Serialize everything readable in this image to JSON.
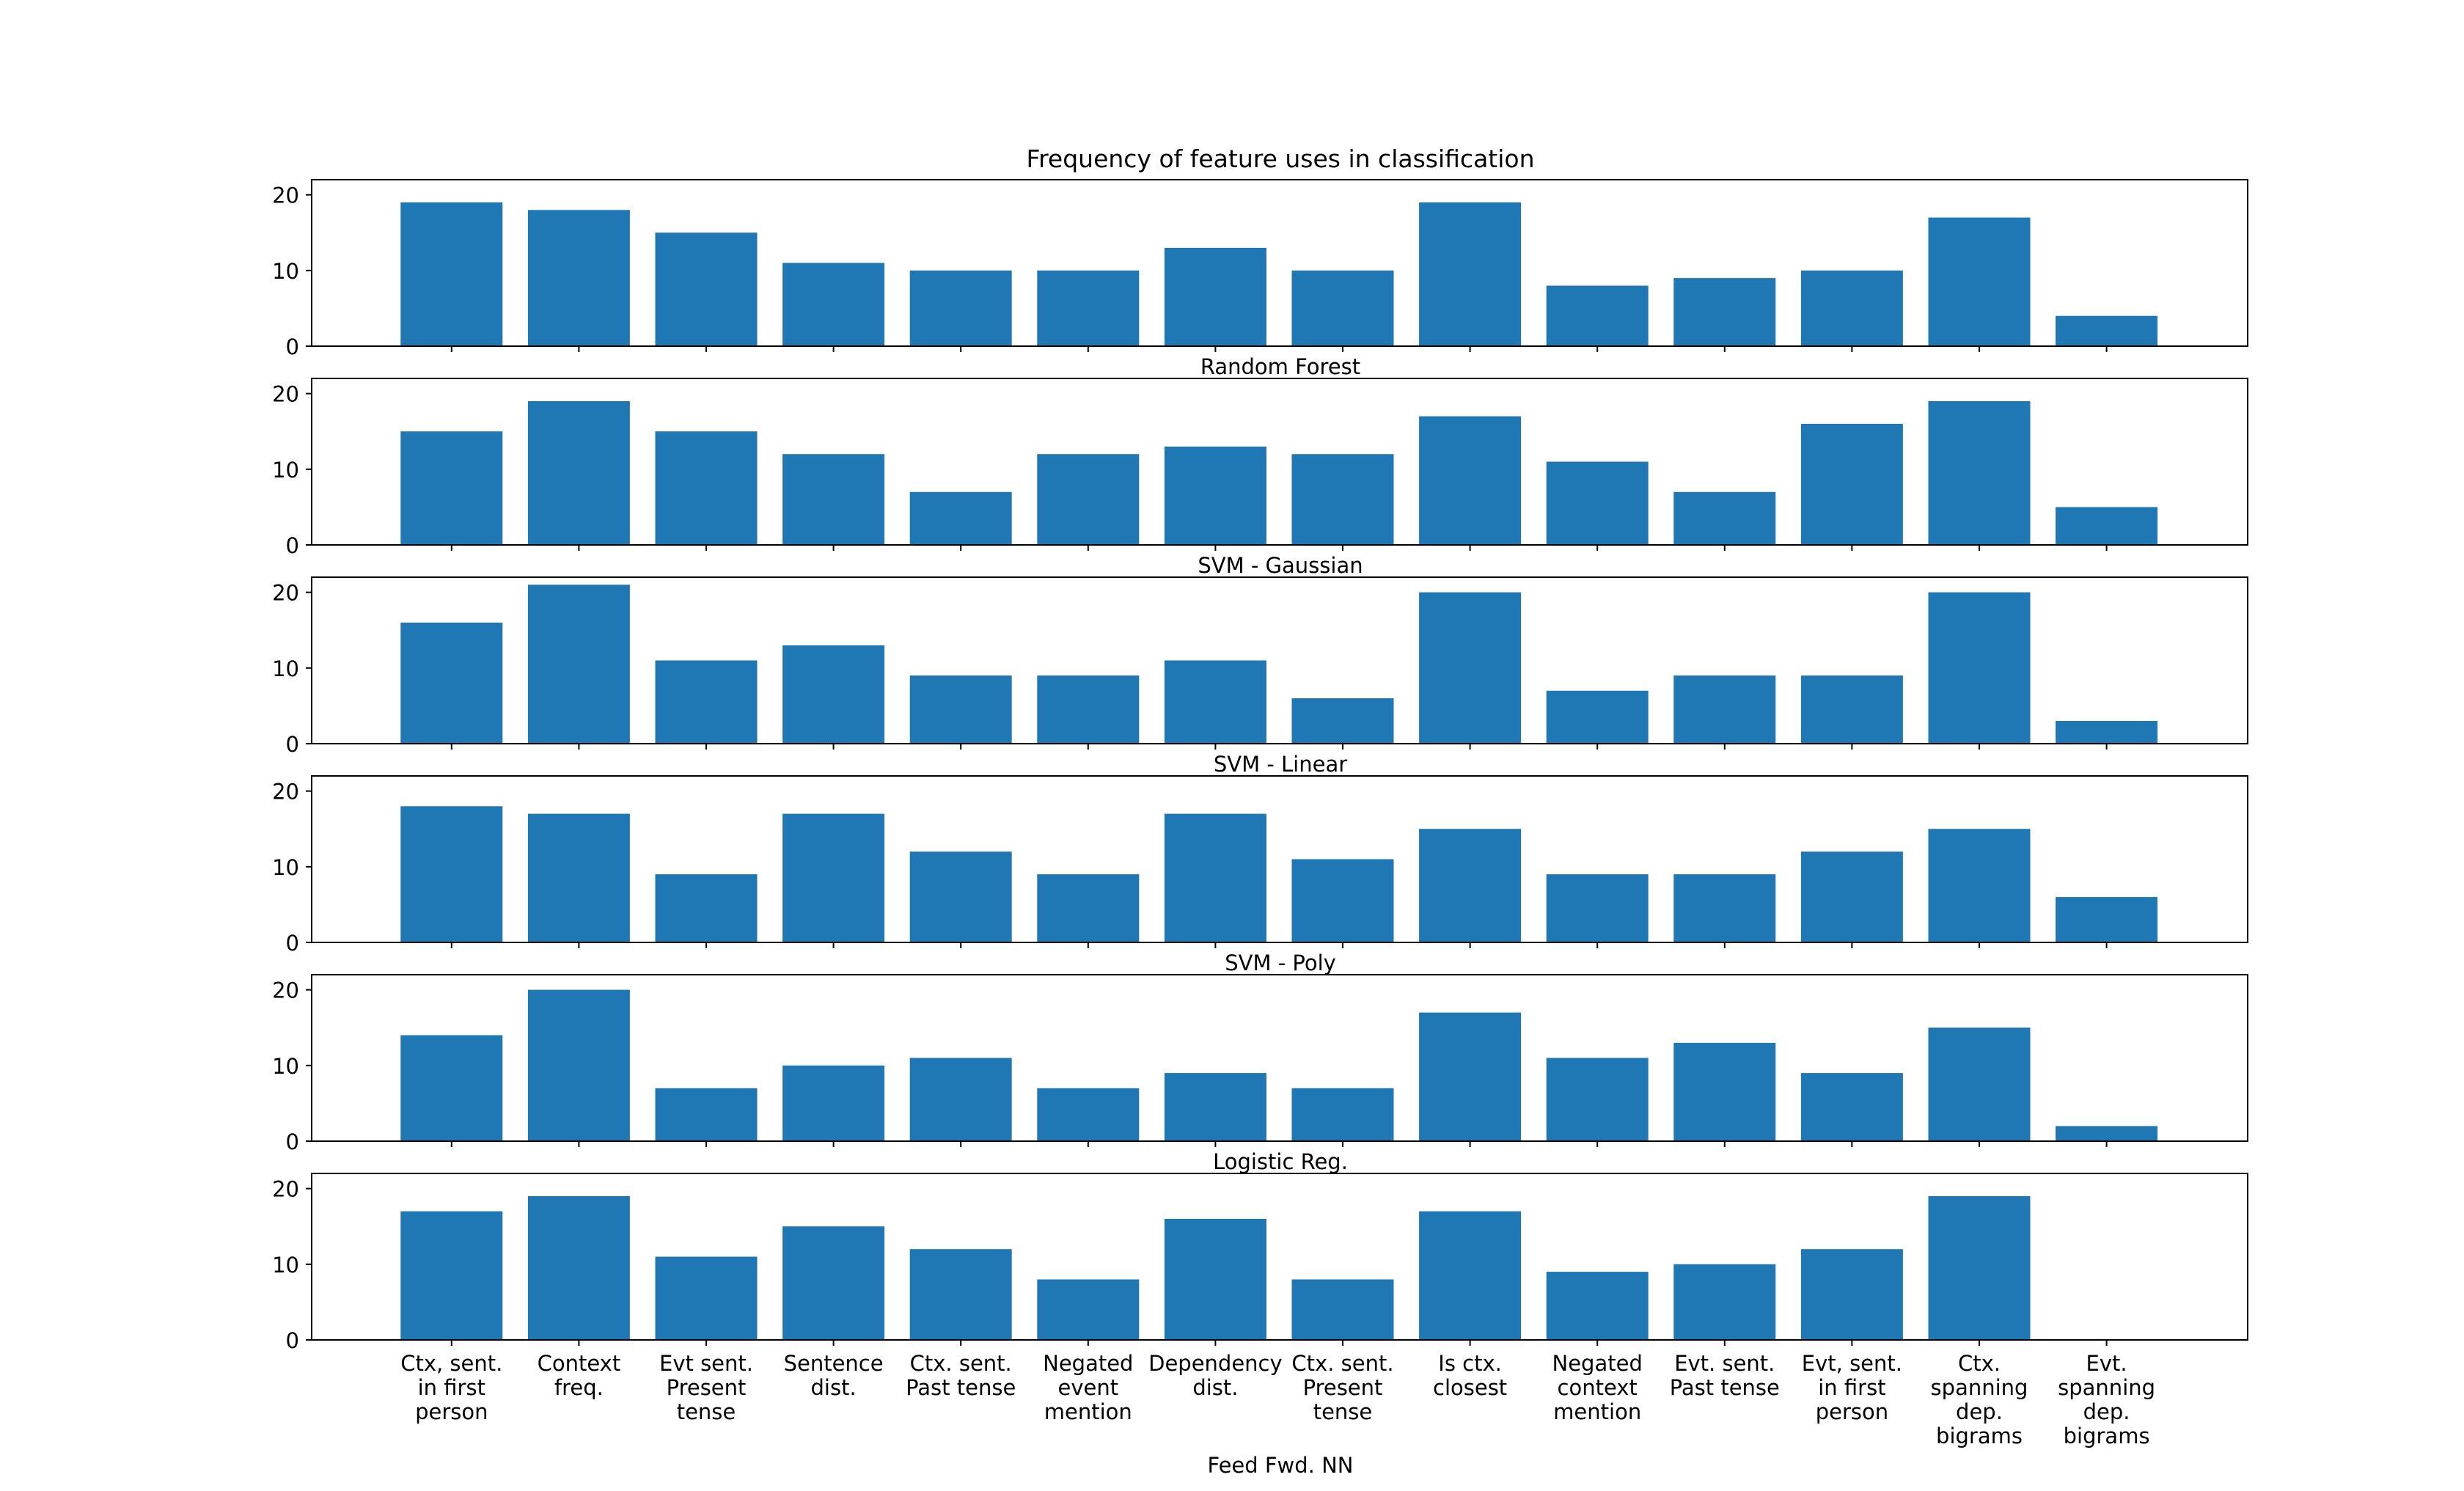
{
  "chart_data": {
    "type": "bar",
    "title": "Frequency of feature uses in classification",
    "categories": [
      "Ctx, sent.\nin first\nperson",
      "Context\nfreq.",
      "Evt sent.\nPresent\ntense",
      "Sentence\ndist.",
      "Ctx. sent.\nPast tense",
      "Negated\nevent\nmention",
      "Dependency\ndist.",
      "Ctx. sent.\nPresent\ntense",
      "Is ctx.\nclosest",
      "Negated\ncontext\nmention",
      "Evt. sent.\nPast tense",
      "Evt, sent.\nin first\nperson",
      "Ctx.\nspanning\ndep.\nbigrams",
      "Evt.\nspanning\ndep.\nbigrams"
    ],
    "ylim": [
      0,
      22
    ],
    "yticks": [
      0,
      10,
      20
    ],
    "bar_color": "#1f77b4",
    "panels": [
      {
        "label": "Random Forest",
        "values": [
          19,
          18,
          15,
          11,
          10,
          10,
          13,
          10,
          19,
          8,
          9,
          10,
          17,
          4
        ]
      },
      {
        "label": "SVM - Gaussian",
        "values": [
          15,
          19,
          15,
          12,
          7,
          12,
          13,
          12,
          17,
          11,
          7,
          16,
          19,
          5
        ]
      },
      {
        "label": "SVM - Linear",
        "values": [
          16,
          21,
          11,
          13,
          9,
          9,
          11,
          6,
          20,
          7,
          9,
          9,
          20,
          3
        ]
      },
      {
        "label": "SVM - Poly",
        "values": [
          18,
          17,
          9,
          17,
          12,
          9,
          17,
          11,
          15,
          9,
          9,
          12,
          15,
          6
        ]
      },
      {
        "label": "Logistic Reg.",
        "values": [
          14,
          20,
          7,
          10,
          11,
          7,
          9,
          7,
          17,
          11,
          13,
          9,
          15,
          2
        ]
      },
      {
        "label": "Feed Fwd. NN",
        "values": [
          17,
          19,
          11,
          15,
          12,
          8,
          16,
          8,
          17,
          9,
          10,
          12,
          19,
          0
        ]
      }
    ]
  }
}
